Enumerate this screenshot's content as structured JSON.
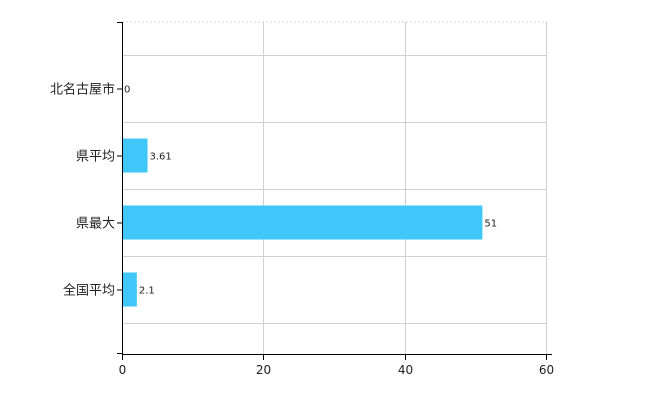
{
  "chart_data": {
    "type": "bar",
    "orientation": "horizontal",
    "categories": [
      "北名古屋市",
      "県平均",
      "県最大",
      "全国平均"
    ],
    "values": [
      0,
      3.61,
      51,
      2.1
    ],
    "data_labels": [
      "0",
      "3.61",
      "51",
      "2.1"
    ],
    "xlim": [
      0,
      60
    ],
    "x_ticks": [
      0,
      20,
      40,
      60
    ],
    "x_tick_labels": [
      "0",
      "20",
      "40",
      "60"
    ],
    "grid": true,
    "legend": "none",
    "bar_color": "#3ec7f8",
    "grid_color": "#d0d0d0"
  }
}
